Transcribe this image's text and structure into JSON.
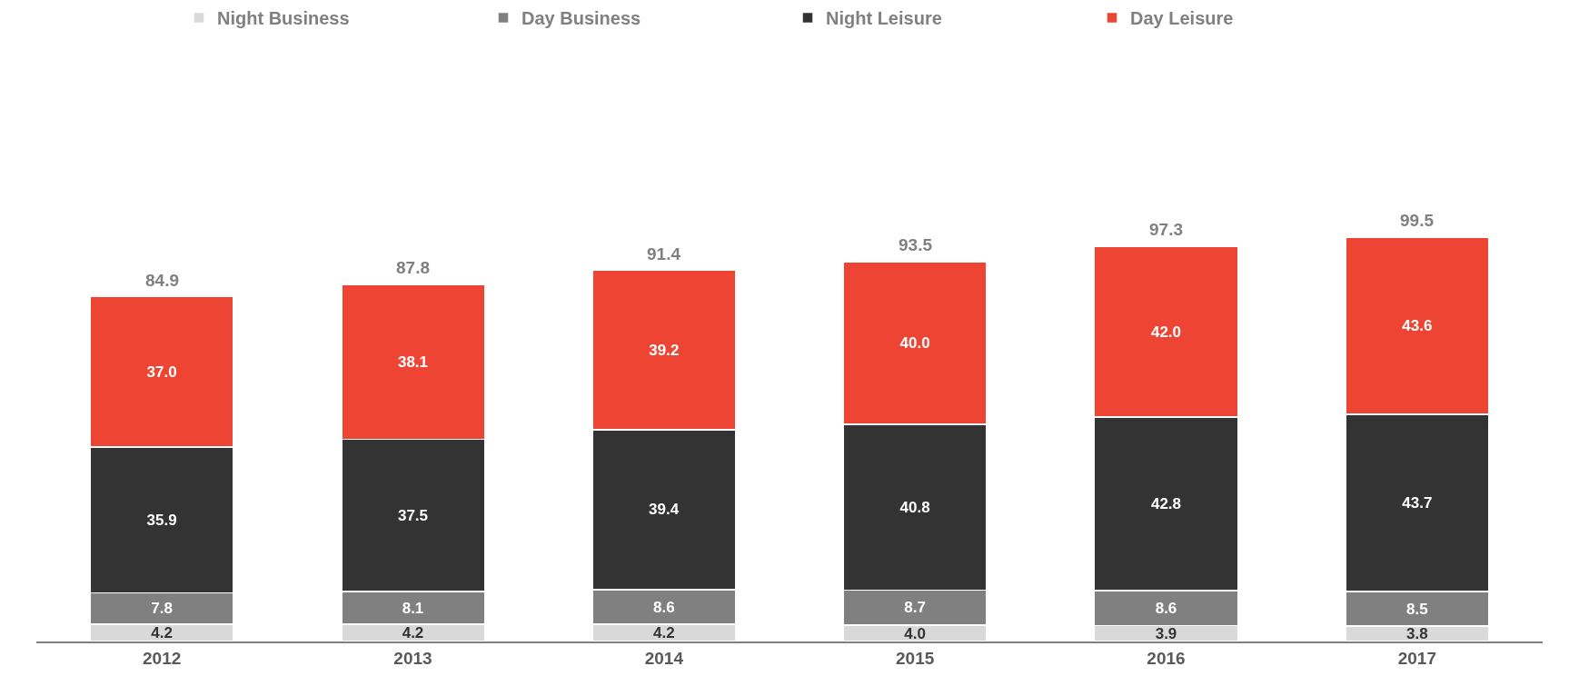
{
  "chart_data": {
    "type": "bar",
    "stacked": true,
    "legend": "top",
    "categories": [
      "2012",
      "2013",
      "2014",
      "2015",
      "2016",
      "2017"
    ],
    "series": [
      {
        "name": "Night Business",
        "color": "#d9d9d9",
        "values": [
          4.2,
          4.2,
          4.2,
          4.0,
          3.9,
          3.8
        ],
        "value_labels": [
          "4.2",
          "4.2",
          "4.2",
          "4.0",
          "3.9",
          "3.8"
        ]
      },
      {
        "name": "Day Business",
        "color": "#808080",
        "values": [
          7.8,
          8.1,
          8.6,
          8.7,
          8.6,
          8.5
        ],
        "value_labels": [
          "7.8",
          "8.1",
          "8.6",
          "8.7",
          "8.6",
          "8.5"
        ]
      },
      {
        "name": "Night Leisure",
        "color": "#333333",
        "values": [
          35.9,
          37.5,
          39.4,
          40.8,
          42.8,
          43.7
        ],
        "value_labels": [
          "35.9",
          "37.5",
          "39.4",
          "40.8",
          "42.8",
          "43.7"
        ]
      },
      {
        "name": "Day Leisure",
        "color": "#ee4433",
        "values": [
          37.0,
          38.1,
          39.2,
          40.0,
          42.0,
          43.6
        ],
        "value_labels": [
          "37.0",
          "38.1",
          "39.2",
          "40.0",
          "42.0",
          "43.6"
        ]
      }
    ],
    "totals": [
      "84.9",
      "87.8",
      "91.4",
      "93.5",
      "97.3",
      "99.5"
    ]
  }
}
